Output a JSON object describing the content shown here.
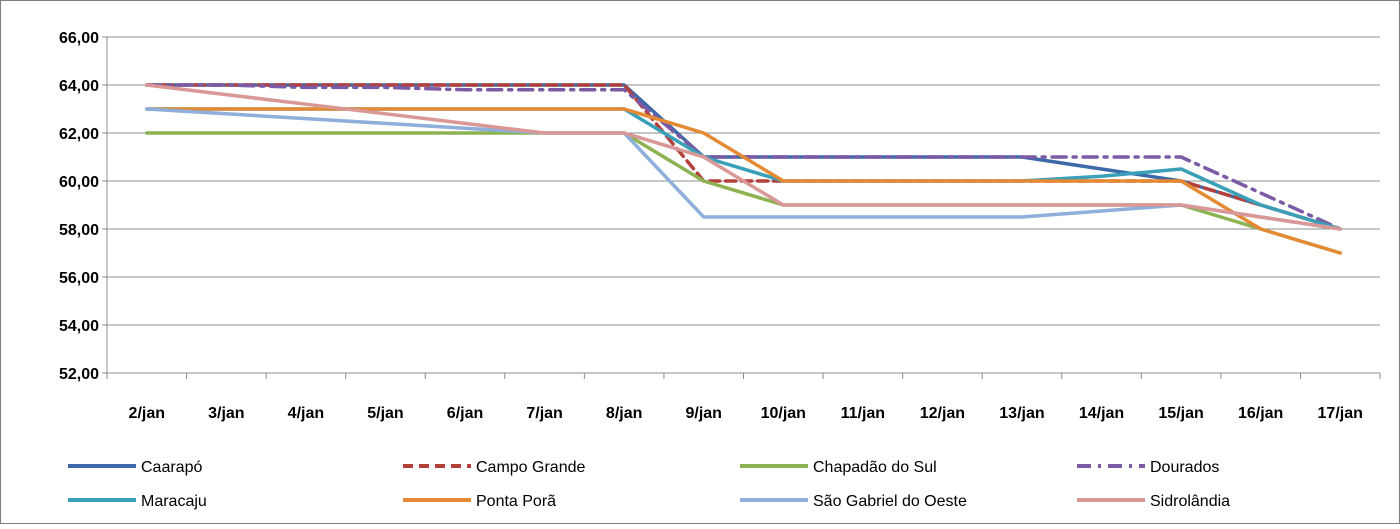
{
  "chart_data": {
    "type": "line",
    "title": "",
    "xlabel": "",
    "ylabel": "",
    "categories": [
      "2/jan",
      "3/jan",
      "4/jan",
      "5/jan",
      "6/jan",
      "7/jan",
      "8/jan",
      "9/jan",
      "10/jan",
      "11/jan",
      "12/jan",
      "13/jan",
      "14/jan",
      "15/jan",
      "16/jan",
      "17/jan"
    ],
    "ylim": [
      52,
      66
    ],
    "yticks": [
      "52,00",
      "54,00",
      "56,00",
      "58,00",
      "60,00",
      "62,00",
      "64,00",
      "66,00"
    ],
    "grid": true,
    "legend_position": "bottom",
    "series": [
      {
        "name": "Caarapó",
        "color": "#3c6aa8",
        "dash": "solid",
        "values": [
          64,
          64,
          64,
          64,
          64,
          64,
          64,
          61,
          61,
          61,
          61,
          61,
          60.5,
          60,
          59,
          58
        ]
      },
      {
        "name": "Campo Grande",
        "color": "#b5403b",
        "dash": "dash",
        "values": [
          64,
          64,
          64,
          64,
          64,
          64,
          64,
          60,
          60,
          60,
          60,
          60,
          60,
          60,
          59,
          58
        ]
      },
      {
        "name": "Chapadão do Sul",
        "color": "#8db251",
        "dash": "solid",
        "values": [
          62,
          62,
          62,
          62,
          62,
          62,
          62,
          60,
          59,
          59,
          59,
          59,
          59,
          59,
          58,
          57
        ]
      },
      {
        "name": "Dourados",
        "color": "#7b5aa6",
        "dash": "dashdot",
        "values": [
          64,
          64,
          63.9,
          63.9,
          63.8,
          63.8,
          63.8,
          61,
          61,
          61,
          61,
          61,
          61,
          61,
          59.5,
          58
        ]
      },
      {
        "name": "Maracaju",
        "color": "#3aa0b8",
        "dash": "solid",
        "values": [
          63,
          63,
          63,
          63,
          63,
          63,
          63,
          61,
          60,
          60,
          60,
          60,
          60.2,
          60.5,
          59,
          58
        ]
      },
      {
        "name": "Ponta Porã",
        "color": "#e58a34",
        "dash": "solid",
        "values": [
          63,
          63,
          63,
          63,
          63,
          63,
          63,
          62,
          60,
          60,
          60,
          60,
          60,
          60,
          58,
          57
        ]
      },
      {
        "name": "São Gabriel do Oeste",
        "color": "#8eaedb",
        "dash": "solid",
        "values": [
          63,
          62.8,
          62.6,
          62.4,
          62.2,
          62,
          62,
          58.5,
          58.5,
          58.5,
          58.5,
          58.5,
          58.75,
          59,
          58.5,
          58
        ]
      },
      {
        "name": "Sidrolândia",
        "color": "#d99795",
        "dash": "solid",
        "values": [
          64,
          63.6,
          63.2,
          62.8,
          62.4,
          62,
          62,
          61,
          59,
          59,
          59,
          59,
          59,
          59,
          58.5,
          58
        ]
      }
    ]
  }
}
